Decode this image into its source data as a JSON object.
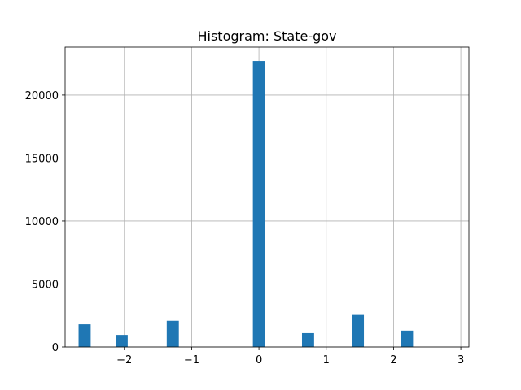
{
  "chart_data": {
    "type": "bar",
    "title": "Histogram:  State-gov",
    "xlabel": "",
    "ylabel": "",
    "xlim": [
      -2.88,
      3.12
    ],
    "ylim": [
      0,
      23800
    ],
    "grid": true,
    "bar_color": "#1f77b4",
    "bin_width": 0.18,
    "bars": [
      {
        "x": -2.59,
        "value": 1800
      },
      {
        "x": -2.04,
        "value": 960
      },
      {
        "x": -1.28,
        "value": 2080
      },
      {
        "x": 0.0,
        "value": 22700
      },
      {
        "x": 0.73,
        "value": 1100
      },
      {
        "x": 1.47,
        "value": 2540
      },
      {
        "x": 2.2,
        "value": 1300
      }
    ],
    "x_ticks": [
      {
        "value": -2,
        "label": "−2"
      },
      {
        "value": -1,
        "label": "−1"
      },
      {
        "value": 0,
        "label": "0"
      },
      {
        "value": 1,
        "label": "1"
      },
      {
        "value": 2,
        "label": "2"
      },
      {
        "value": 3,
        "label": "3"
      }
    ],
    "y_ticks": [
      {
        "value": 0,
        "label": "0"
      },
      {
        "value": 5000,
        "label": "5000"
      },
      {
        "value": 10000,
        "label": "10000"
      },
      {
        "value": 15000,
        "label": "15000"
      },
      {
        "value": 20000,
        "label": "20000"
      }
    ]
  }
}
